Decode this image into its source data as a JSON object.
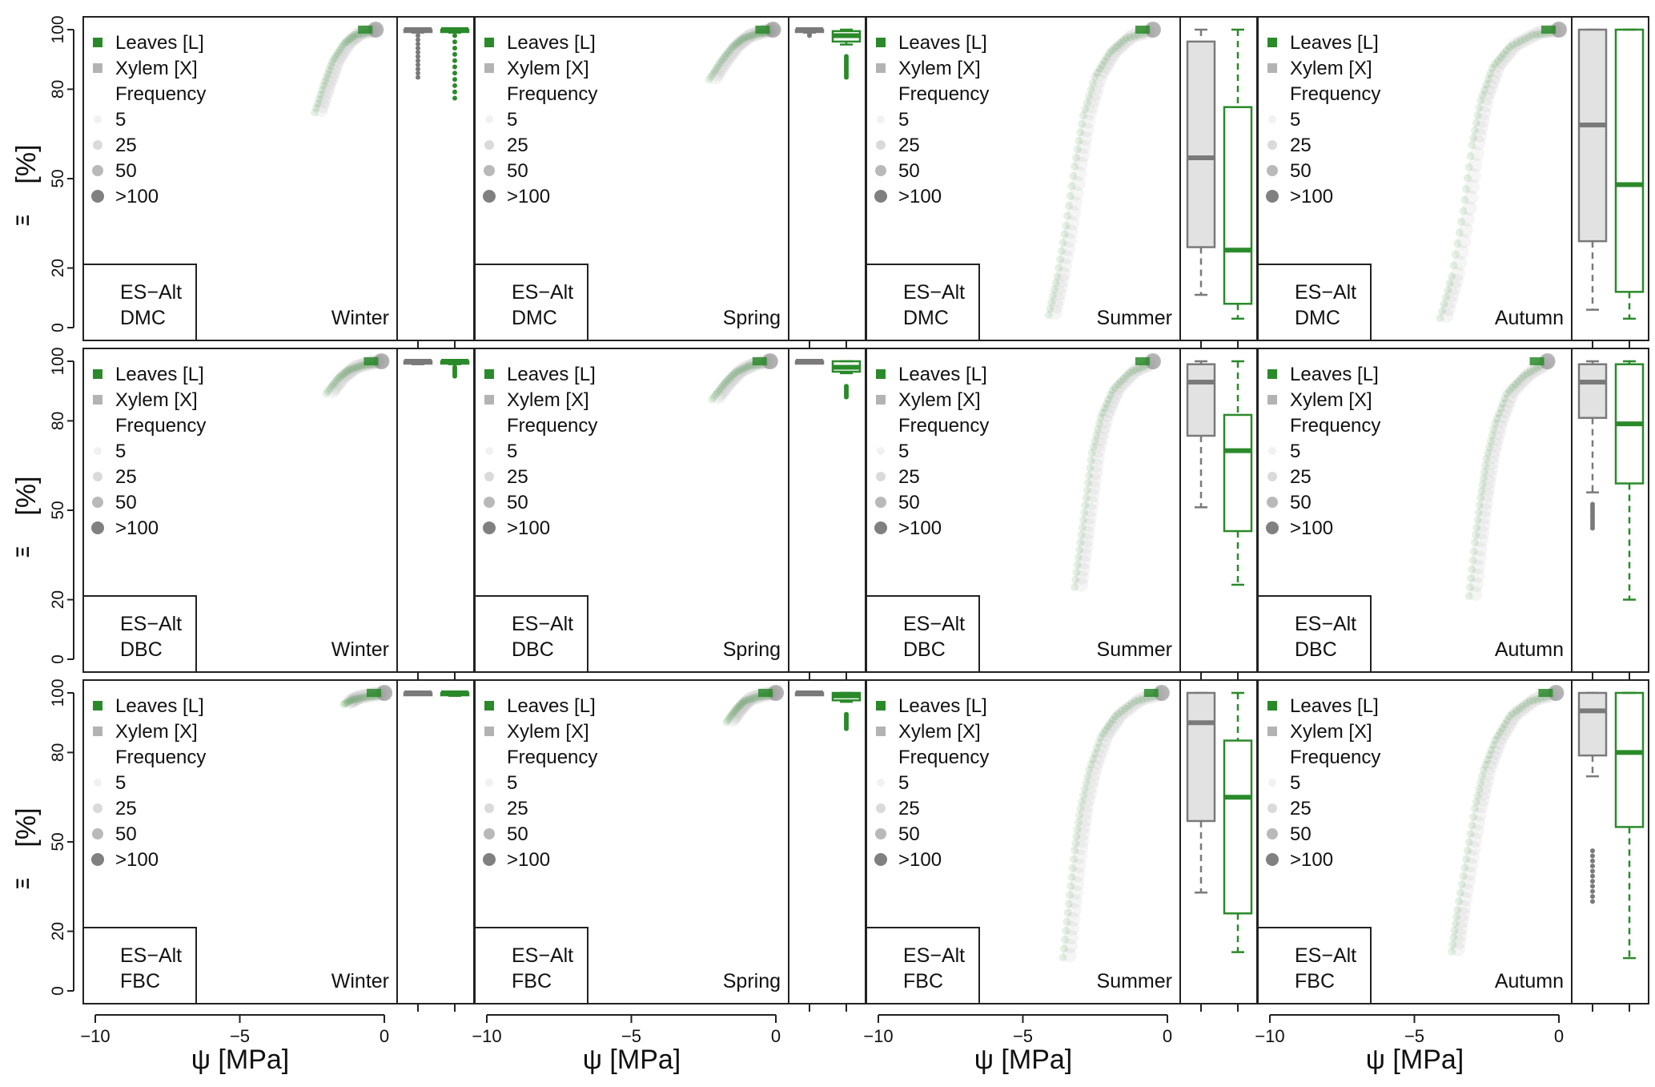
{
  "figure": {
    "y_axis_label": "[%]",
    "y_axis_symbol": "Ξ",
    "x_axis_label": "ψ [MPa]"
  },
  "legend": {
    "leaves_label": "Leaves [L]",
    "xylem_label": "Xylem [X]",
    "frequency_title": "Frequency",
    "frequency_levels": [
      "5",
      "25",
      "50",
      ">100"
    ]
  },
  "colors": {
    "leaves": "#2a8a2a",
    "xylem": "#7a7a7a",
    "box_fill": "#e2e2e2",
    "frame": "#222222"
  },
  "chart_data": {
    "type": "scatter",
    "site": "ES−Alt",
    "rows": [
      "DMC",
      "DBC",
      "FBC"
    ],
    "seasons": [
      "Winter",
      "Spring",
      "Summer",
      "Autumn"
    ],
    "xlim": [
      -10,
      0
    ],
    "ylim": [
      0,
      100
    ],
    "x_ticks": [
      "−10",
      "−5",
      "0"
    ],
    "y_ticks": [
      "0",
      "20",
      "50",
      "80",
      "100"
    ],
    "grid": false,
    "legend_position": "top-left",
    "panels": [
      {
        "row": "DMC",
        "season": "Winter",
        "curve": [
          [
            -2.3,
            73
          ],
          [
            -2.0,
            82
          ],
          [
            -1.7,
            90
          ],
          [
            -1.3,
            96
          ],
          [
            -0.9,
            99
          ],
          [
            -0.3,
            100
          ]
        ],
        "boxplots": {
          "xylem": {
            "lower_whisker": 99,
            "q1": 99.5,
            "median": 100,
            "q3": 100,
            "upper_whisker": 100,
            "outlier_range": [
              84,
              98
            ]
          },
          "leaves": {
            "lower_whisker": 99,
            "q1": 99.5,
            "median": 100,
            "q3": 100,
            "upper_whisker": 100,
            "outlier_range": [
              77,
              98
            ]
          }
        }
      },
      {
        "row": "DMC",
        "season": "Spring",
        "curve": [
          [
            -2.2,
            84
          ],
          [
            -1.8,
            90
          ],
          [
            -1.4,
            95
          ],
          [
            -1.0,
            98
          ],
          [
            -0.5,
            99.5
          ],
          [
            -0.1,
            100
          ]
        ],
        "boxplots": {
          "xylem": {
            "lower_whisker": 99,
            "q1": 99.3,
            "median": 100,
            "q3": 100,
            "upper_whisker": 100,
            "outlier_range": [
              98,
              99
            ]
          },
          "leaves": {
            "lower_whisker": 95,
            "q1": 96,
            "median": 98,
            "q3": 99.5,
            "upper_whisker": 100,
            "outlier_range": [
              84,
              91
            ]
          }
        }
      },
      {
        "row": "DMC",
        "season": "Summer",
        "curve": [
          [
            -4.0,
            5
          ],
          [
            -3.7,
            18
          ],
          [
            -3.4,
            35
          ],
          [
            -3.1,
            55
          ],
          [
            -2.8,
            72
          ],
          [
            -2.4,
            85
          ],
          [
            -1.9,
            93
          ],
          [
            -1.3,
            98
          ],
          [
            -0.5,
            100
          ]
        ],
        "boxplots": {
          "xylem": {
            "lower_whisker": 11,
            "q1": 27,
            "median": 57,
            "q3": 96,
            "upper_whisker": 100
          },
          "leaves": {
            "lower_whisker": 3,
            "q1": 8,
            "median": 26,
            "q3": 74,
            "upper_whisker": 100
          }
        }
      },
      {
        "row": "DMC",
        "season": "Autumn",
        "curve": [
          [
            -4.0,
            4
          ],
          [
            -3.6,
            18
          ],
          [
            -3.2,
            40
          ],
          [
            -2.9,
            62
          ],
          [
            -2.6,
            77
          ],
          [
            -2.2,
            88
          ],
          [
            -1.6,
            95
          ],
          [
            -0.8,
            99
          ],
          [
            0,
            100
          ]
        ],
        "boxplots": {
          "xylem": {
            "lower_whisker": 6,
            "q1": 29,
            "median": 68,
            "q3": 100,
            "upper_whisker": 100
          },
          "leaves": {
            "lower_whisker": 3,
            "q1": 12,
            "median": 48,
            "q3": 100,
            "upper_whisker": 100
          }
        }
      },
      {
        "row": "DBC",
        "season": "Winter",
        "curve": [
          [
            -1.9,
            90
          ],
          [
            -1.5,
            95
          ],
          [
            -1.1,
            98
          ],
          [
            -0.6,
            99.5
          ],
          [
            -0.1,
            100
          ]
        ],
        "boxplots": {
          "xylem": {
            "lower_whisker": 99,
            "q1": 99.5,
            "median": 100,
            "q3": 100,
            "upper_whisker": 100
          },
          "leaves": {
            "lower_whisker": 99,
            "q1": 99.5,
            "median": 100,
            "q3": 100,
            "upper_whisker": 100,
            "outlier_range": [
              95,
              98
            ]
          }
        }
      },
      {
        "row": "DBC",
        "season": "Spring",
        "curve": [
          [
            -2.1,
            88
          ],
          [
            -1.7,
            93
          ],
          [
            -1.3,
            97
          ],
          [
            -0.8,
            99.3
          ],
          [
            -0.2,
            100
          ]
        ],
        "boxplots": {
          "xylem": {
            "lower_whisker": 99.5,
            "q1": 99.7,
            "median": 100,
            "q3": 100,
            "upper_whisker": 100
          },
          "leaves": {
            "lower_whisker": 96,
            "q1": 96.5,
            "median": 98,
            "q3": 100,
            "upper_whisker": 100,
            "outlier_range": [
              88,
              92
            ]
          }
        }
      },
      {
        "row": "DBC",
        "season": "Summer",
        "curve": [
          [
            -3.1,
            25
          ],
          [
            -2.9,
            40
          ],
          [
            -2.7,
            55
          ],
          [
            -2.5,
            70
          ],
          [
            -2.2,
            82
          ],
          [
            -1.8,
            91
          ],
          [
            -1.2,
            97
          ],
          [
            -0.5,
            100
          ]
        ],
        "boxplots": {
          "xylem": {
            "lower_whisker": 51,
            "q1": 75,
            "median": 93,
            "q3": 99,
            "upper_whisker": 100
          },
          "leaves": {
            "lower_whisker": 25,
            "q1": 43,
            "median": 70,
            "q3": 82,
            "upper_whisker": 100
          }
        }
      },
      {
        "row": "DBC",
        "season": "Autumn",
        "curve": [
          [
            -3.0,
            22
          ],
          [
            -2.8,
            40
          ],
          [
            -2.6,
            55
          ],
          [
            -2.4,
            68
          ],
          [
            -2.1,
            80
          ],
          [
            -1.7,
            90
          ],
          [
            -1.1,
            96
          ],
          [
            -0.4,
            100
          ]
        ],
        "boxplots": {
          "xylem": {
            "lower_whisker": 56,
            "q1": 81,
            "median": 93,
            "q3": 99,
            "upper_whisker": 100,
            "outlier_range": [
              44,
              52
            ]
          },
          "leaves": {
            "lower_whisker": 20,
            "q1": 59,
            "median": 79,
            "q3": 99,
            "upper_whisker": 100
          }
        }
      },
      {
        "row": "FBC",
        "season": "Winter",
        "curve": [
          [
            -1.3,
            97
          ],
          [
            -1.0,
            98.5
          ],
          [
            -0.5,
            99.5
          ],
          [
            0,
            100
          ]
        ],
        "boxplots": {
          "xylem": {
            "lower_whisker": 99.5,
            "q1": 99.7,
            "median": 100,
            "q3": 100,
            "upper_whisker": 100
          },
          "leaves": {
            "lower_whisker": 99,
            "q1": 99.3,
            "median": 100,
            "q3": 100,
            "upper_whisker": 100
          }
        }
      },
      {
        "row": "FBC",
        "season": "Spring",
        "curve": [
          [
            -1.6,
            91
          ],
          [
            -1.3,
            95
          ],
          [
            -1.0,
            98
          ],
          [
            -0.5,
            99.5
          ],
          [
            0,
            100
          ]
        ],
        "boxplots": {
          "xylem": {
            "lower_whisker": 99.5,
            "q1": 99.7,
            "median": 100,
            "q3": 100,
            "upper_whisker": 100
          },
          "leaves": {
            "lower_whisker": 97,
            "q1": 97.5,
            "median": 99,
            "q3": 100,
            "upper_whisker": 100,
            "outlier_range": [
              88,
              93
            ]
          }
        }
      },
      {
        "row": "FBC",
        "season": "Summer",
        "curve": [
          [
            -3.5,
            12
          ],
          [
            -3.3,
            30
          ],
          [
            -3.1,
            48
          ],
          [
            -2.9,
            62
          ],
          [
            -2.6,
            75
          ],
          [
            -2.2,
            86
          ],
          [
            -1.7,
            93
          ],
          [
            -1.0,
            98
          ],
          [
            -0.2,
            100
          ]
        ],
        "boxplots": {
          "xylem": {
            "lower_whisker": 33,
            "q1": 57,
            "median": 90,
            "q3": 100,
            "upper_whisker": 100
          },
          "leaves": {
            "lower_whisker": 13,
            "q1": 26,
            "median": 65,
            "q3": 84,
            "upper_whisker": 100
          }
        }
      },
      {
        "row": "FBC",
        "season": "Autumn",
        "curve": [
          [
            -3.6,
            14
          ],
          [
            -3.4,
            28
          ],
          [
            -3.1,
            45
          ],
          [
            -2.8,
            62
          ],
          [
            -2.5,
            75
          ],
          [
            -2.1,
            85
          ],
          [
            -1.6,
            93
          ],
          [
            -0.9,
            98
          ],
          [
            -0.1,
            100
          ]
        ],
        "boxplots": {
          "xylem": {
            "lower_whisker": 72,
            "q1": 79,
            "median": 94,
            "q3": 100,
            "upper_whisker": 100,
            "outlier_range": [
              30,
              47
            ]
          },
          "leaves": {
            "lower_whisker": 11,
            "q1": 55,
            "median": 80,
            "q3": 100,
            "upper_whisker": 100
          }
        }
      }
    ]
  }
}
